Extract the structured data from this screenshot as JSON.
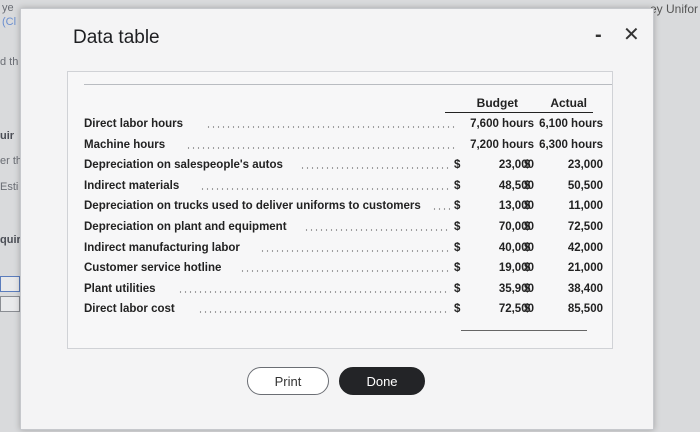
{
  "background": {
    "fragments_left": [
      "ye",
      "(Cl",
      "d th",
      "uir",
      "er th",
      "Esti",
      "quir"
    ],
    "fragment_top_right": "ey Unifor"
  },
  "dialog": {
    "title": "Data table",
    "minimize_glyph": "-",
    "close_glyph": "✕"
  },
  "table": {
    "columns": {
      "budget": "Budget",
      "actual": "Actual"
    },
    "rows": [
      {
        "label": "Direct labor hours",
        "budget_cur": "",
        "budget": "7,600 hours",
        "actual_cur": "",
        "actual": "6,100 hours"
      },
      {
        "label": "Machine hours",
        "budget_cur": "",
        "budget": "7,200 hours",
        "actual_cur": "",
        "actual": "6,300 hours"
      },
      {
        "label": "Depreciation on salespeople's autos",
        "budget_cur": "$",
        "budget": "23,000",
        "actual_cur": "$",
        "actual": "23,000"
      },
      {
        "label": "Indirect materials",
        "budget_cur": "$",
        "budget": "48,500",
        "actual_cur": "$",
        "actual": "50,500"
      },
      {
        "label": "Depreciation on trucks used to deliver uniforms to customers",
        "budget_cur": "$",
        "budget": "13,000",
        "actual_cur": "$",
        "actual": "11,000"
      },
      {
        "label": "Depreciation on plant and equipment",
        "budget_cur": "$",
        "budget": "70,000",
        "actual_cur": "$",
        "actual": "72,500"
      },
      {
        "label": "Indirect manufacturing labor",
        "budget_cur": "$",
        "budget": "40,000",
        "actual_cur": "$",
        "actual": "42,000"
      },
      {
        "label": "Customer service hotline",
        "budget_cur": "$",
        "budget": "19,000",
        "actual_cur": "$",
        "actual": "21,000"
      },
      {
        "label": "Plant utilities",
        "budget_cur": "$",
        "budget": "35,900",
        "actual_cur": "$",
        "actual": "38,400"
      },
      {
        "label": "Direct labor cost",
        "budget_cur": "$",
        "budget": "72,500",
        "actual_cur": "$",
        "actual": "85,500"
      }
    ]
  },
  "buttons": {
    "print": "Print",
    "done": "Done"
  }
}
